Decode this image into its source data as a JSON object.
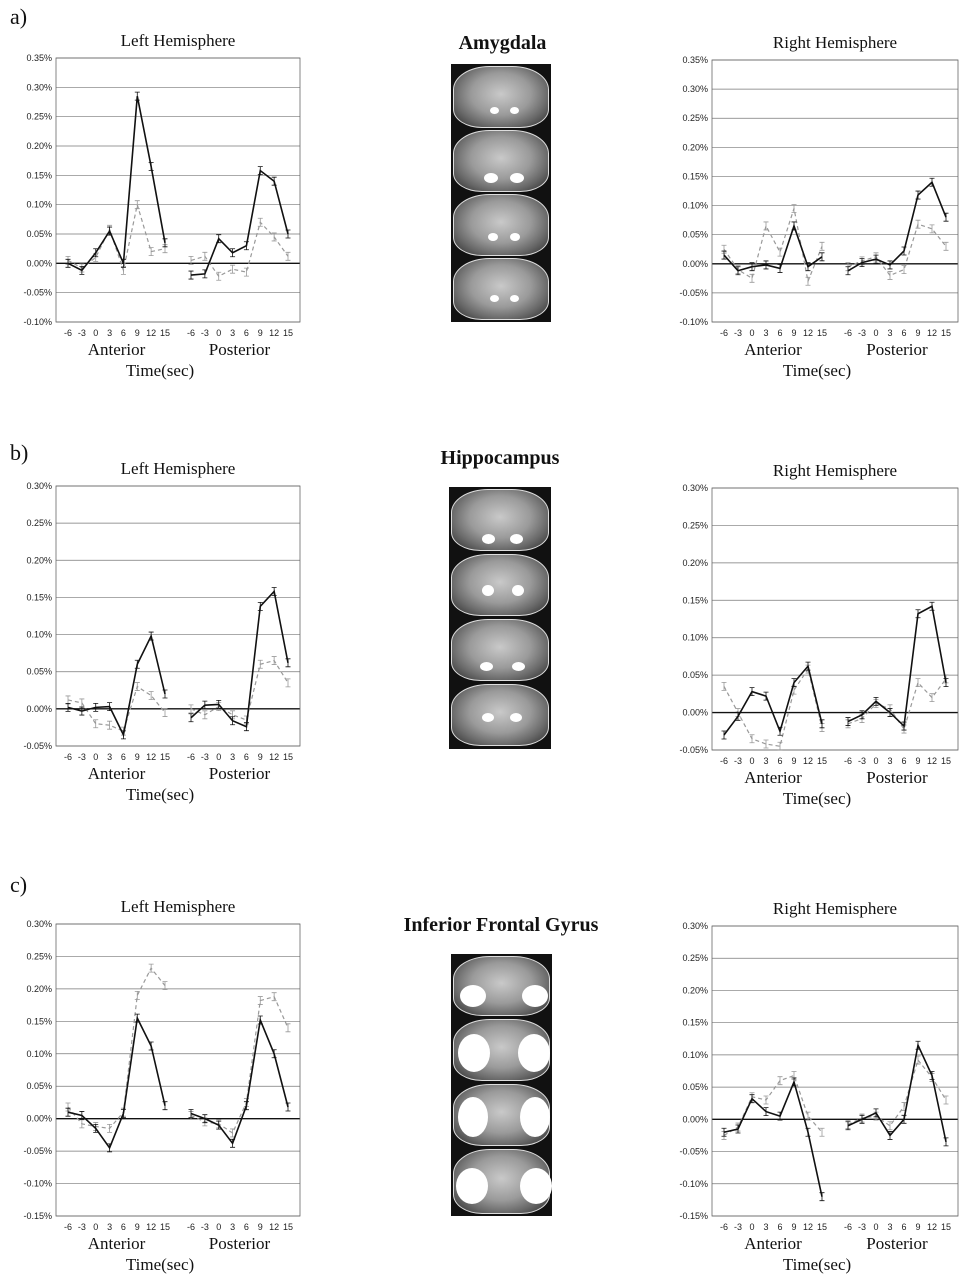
{
  "panels": [
    {
      "letter": "a)",
      "region": "Amygdala"
    },
    {
      "letter": "b)",
      "region": "Hippocampus"
    },
    {
      "letter": "c)",
      "region": "Inferior Frontal Gyrus"
    }
  ],
  "chart_data": [
    {
      "id": "a-left",
      "type": "line",
      "title": "Left Hemisphere",
      "xlabel": "Time(sec)",
      "group_labels": [
        "Anterior",
        "Posterior"
      ],
      "x": [
        -6,
        -3,
        0,
        3,
        6,
        9,
        12,
        15
      ],
      "ylim": [
        -0.1,
        0.35
      ],
      "yticks": [
        -0.1,
        -0.05,
        0.0,
        0.05,
        0.1,
        0.15,
        0.2,
        0.25,
        0.3,
        0.35
      ],
      "series": [
        {
          "style": "solid",
          "color": "#111111",
          "anterior": [
            0.0,
            -0.012,
            0.018,
            0.055,
            0.0,
            0.285,
            0.165,
            0.035
          ],
          "posterior": [
            -0.02,
            -0.018,
            0.042,
            0.018,
            0.03,
            0.158,
            0.14,
            0.05
          ]
        },
        {
          "style": "dashed",
          "color": "#999999",
          "anterior": [
            0.005,
            -0.008,
            0.01,
            0.058,
            -0.012,
            0.1,
            0.02,
            0.025
          ],
          "posterior": [
            0.005,
            0.012,
            -0.022,
            -0.01,
            -0.015,
            0.07,
            0.045,
            0.012
          ]
        }
      ]
    },
    {
      "id": "a-right",
      "type": "line",
      "title": "Right Hemisphere",
      "xlabel": "Time(sec)",
      "group_labels": [
        "Anterior",
        "Posterior"
      ],
      "x": [
        -6,
        -3,
        0,
        3,
        6,
        9,
        12,
        15
      ],
      "ylim": [
        -0.1,
        0.35
      ],
      "yticks": [
        -0.1,
        -0.05,
        0.0,
        0.05,
        0.1,
        0.15,
        0.2,
        0.25,
        0.3,
        0.35
      ],
      "series": [
        {
          "style": "solid",
          "color": "#111111",
          "anterior": [
            0.015,
            -0.012,
            -0.005,
            -0.002,
            -0.008,
            0.065,
            -0.005,
            0.012
          ],
          "posterior": [
            -0.012,
            0.002,
            0.008,
            -0.002,
            0.022,
            0.118,
            0.14,
            0.08
          ]
        },
        {
          "style": "dashed",
          "color": "#999999",
          "anterior": [
            0.025,
            -0.01,
            -0.025,
            0.065,
            0.02,
            0.095,
            -0.03,
            0.03
          ],
          "posterior": [
            -0.005,
            0.005,
            0.012,
            -0.02,
            -0.01,
            0.068,
            0.06,
            0.03
          ]
        }
      ]
    },
    {
      "id": "b-left",
      "type": "line",
      "title": "Left Hemisphere",
      "xlabel": "Time(sec)",
      "group_labels": [
        "Anterior",
        "Posterior"
      ],
      "x": [
        -6,
        -3,
        0,
        3,
        6,
        9,
        12,
        15
      ],
      "ylim": [
        -0.05,
        0.3
      ],
      "yticks": [
        -0.05,
        0.0,
        0.05,
        0.1,
        0.15,
        0.2,
        0.25,
        0.3
      ],
      "series": [
        {
          "style": "solid",
          "color": "#111111",
          "anterior": [
            0.002,
            -0.003,
            0.002,
            0.003,
            -0.035,
            0.06,
            0.098,
            0.02
          ],
          "posterior": [
            -0.012,
            0.005,
            0.006,
            -0.016,
            -0.024,
            0.138,
            0.158,
            0.062
          ]
        },
        {
          "style": "dashed",
          "color": "#999999",
          "anterior": [
            0.012,
            0.008,
            -0.02,
            -0.022,
            -0.03,
            0.03,
            0.018,
            -0.005
          ],
          "posterior": [
            0.0,
            -0.008,
            0.003,
            -0.008,
            -0.015,
            0.06,
            0.065,
            0.035
          ]
        }
      ]
    },
    {
      "id": "b-right",
      "type": "line",
      "title": "Right Hemisphere",
      "xlabel": "Time(sec)",
      "group_labels": [
        "Anterior",
        "Posterior"
      ],
      "x": [
        -6,
        -3,
        0,
        3,
        6,
        9,
        12,
        15
      ],
      "ylim": [
        -0.05,
        0.3
      ],
      "yticks": [
        -0.05,
        0.0,
        0.05,
        0.1,
        0.15,
        0.2,
        0.25,
        0.3
      ],
      "series": [
        {
          "style": "solid",
          "color": "#111111",
          "anterior": [
            -0.03,
            -0.005,
            0.028,
            0.022,
            -0.025,
            0.04,
            0.062,
            -0.015
          ],
          "posterior": [
            -0.012,
            -0.003,
            0.015,
            0.0,
            -0.018,
            0.132,
            0.142,
            0.04
          ]
        },
        {
          "style": "dashed",
          "color": "#999999",
          "anterior": [
            0.035,
            0.0,
            -0.035,
            -0.042,
            -0.045,
            0.03,
            0.058,
            -0.02
          ],
          "posterior": [
            -0.015,
            -0.008,
            0.012,
            0.005,
            -0.022,
            0.04,
            0.02,
            0.045
          ]
        }
      ]
    },
    {
      "id": "c-left",
      "type": "line",
      "title": "Left Hemisphere",
      "xlabel": "Time(sec)",
      "group_labels": [
        "Anterior",
        "Posterior"
      ],
      "x": [
        -6,
        -3,
        0,
        3,
        6,
        9,
        12,
        15
      ],
      "ylim": [
        -0.15,
        0.3
      ],
      "yticks": [
        -0.15,
        -0.1,
        -0.05,
        0.0,
        0.05,
        0.1,
        0.15,
        0.2,
        0.25,
        0.3
      ],
      "series": [
        {
          "style": "solid",
          "color": "#111111",
          "anterior": [
            0.01,
            0.005,
            -0.015,
            -0.045,
            0.008,
            0.155,
            0.112,
            0.02
          ],
          "posterior": [
            0.008,
            0.0,
            -0.01,
            -0.038,
            0.02,
            0.152,
            0.1,
            0.018
          ]
        },
        {
          "style": "dashed",
          "color": "#999999",
          "anterior": [
            0.018,
            -0.008,
            -0.012,
            -0.015,
            0.01,
            0.19,
            0.232,
            0.205
          ],
          "posterior": [
            0.005,
            -0.005,
            -0.008,
            -0.022,
            0.025,
            0.182,
            0.188,
            0.14
          ]
        }
      ]
    },
    {
      "id": "c-right",
      "type": "line",
      "title": "Right Hemisphere",
      "xlabel": "Time(sec)",
      "group_labels": [
        "Anterior",
        "Posterior"
      ],
      "x": [
        -6,
        -3,
        0,
        3,
        6,
        9,
        12,
        15
      ],
      "ylim": [
        -0.15,
        0.3
      ],
      "yticks": [
        -0.15,
        -0.1,
        -0.05,
        0.0,
        0.05,
        0.1,
        0.15,
        0.2,
        0.25,
        0.3
      ],
      "series": [
        {
          "style": "solid",
          "color": "#111111",
          "anterior": [
            -0.02,
            -0.015,
            0.032,
            0.012,
            0.005,
            0.058,
            -0.02,
            -0.12
          ],
          "posterior": [
            -0.01,
            0.0,
            0.01,
            -0.025,
            0.0,
            0.115,
            0.068,
            -0.035
          ]
        },
        {
          "style": "dashed",
          "color": "#999999",
          "anterior": [
            -0.025,
            -0.012,
            0.035,
            0.03,
            0.06,
            0.068,
            0.005,
            -0.02
          ],
          "posterior": [
            -0.008,
            0.002,
            0.005,
            -0.01,
            0.02,
            0.092,
            0.065,
            0.03
          ]
        }
      ]
    }
  ]
}
